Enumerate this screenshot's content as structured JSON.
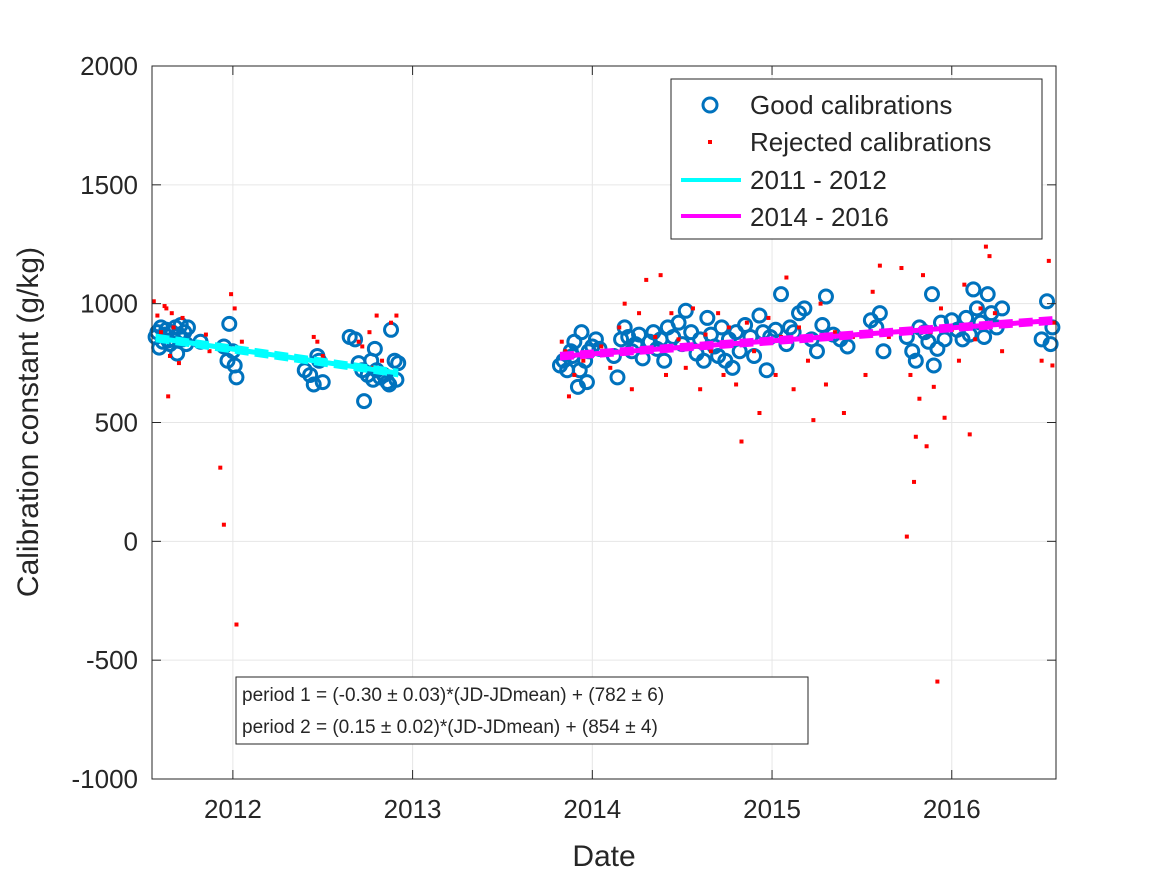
{
  "chart_data": {
    "type": "scatter",
    "xlabel": "Date",
    "ylabel": "Calibration constant (g/kg)",
    "xlim": [
      2011.55,
      2016.58
    ],
    "ylim": [
      -1000,
      2000
    ],
    "xticks": [
      2012,
      2013,
      2014,
      2015,
      2016
    ],
    "xtick_labels": [
      "2012",
      "2013",
      "2014",
      "2015",
      "2016"
    ],
    "yticks": [
      -1000,
      -500,
      0,
      500,
      1000,
      1500,
      2000
    ],
    "ytick_labels": [
      "-1000",
      "-500",
      "0",
      "500",
      "1000",
      "1500",
      "2000"
    ],
    "grid": true,
    "legend_position": "top-right",
    "series": [
      {
        "name": "Good calibrations",
        "kind": "marker-circle",
        "color": "#0072BD",
        "points": [
          [
            2011.57,
            860
          ],
          [
            2011.58,
            880
          ],
          [
            2011.59,
            815
          ],
          [
            2011.6,
            900
          ],
          [
            2011.61,
            840
          ],
          [
            2011.62,
            870
          ],
          [
            2011.63,
            890
          ],
          [
            2011.64,
            845
          ],
          [
            2011.65,
            830
          ],
          [
            2011.66,
            880
          ],
          [
            2011.67,
            850
          ],
          [
            2011.68,
            900
          ],
          [
            2011.69,
            790
          ],
          [
            2011.7,
            870
          ],
          [
            2011.71,
            910
          ],
          [
            2011.72,
            850
          ],
          [
            2011.73,
            880
          ],
          [
            2011.74,
            830
          ],
          [
            2011.75,
            900
          ],
          [
            2011.82,
            840
          ],
          [
            2011.95,
            820
          ],
          [
            2011.97,
            760
          ],
          [
            2011.98,
            915
          ],
          [
            2012.0,
            800
          ],
          [
            2012.01,
            740
          ],
          [
            2012.02,
            690
          ],
          [
            2012.4,
            720
          ],
          [
            2012.43,
            700
          ],
          [
            2012.45,
            660
          ],
          [
            2012.47,
            780
          ],
          [
            2012.48,
            760
          ],
          [
            2012.5,
            670
          ],
          [
            2012.65,
            860
          ],
          [
            2012.68,
            850
          ],
          [
            2012.7,
            750
          ],
          [
            2012.72,
            720
          ],
          [
            2012.73,
            590
          ],
          [
            2012.75,
            700
          ],
          [
            2012.77,
            760
          ],
          [
            2012.78,
            680
          ],
          [
            2012.79,
            810
          ],
          [
            2012.8,
            720
          ],
          [
            2012.82,
            690
          ],
          [
            2012.84,
            700
          ],
          [
            2012.86,
            670
          ],
          [
            2012.87,
            660
          ],
          [
            2012.88,
            890
          ],
          [
            2012.9,
            760
          ],
          [
            2012.91,
            680
          ],
          [
            2012.92,
            750
          ],
          [
            2013.82,
            740
          ],
          [
            2013.84,
            760
          ],
          [
            2013.86,
            720
          ],
          [
            2013.88,
            800
          ],
          [
            2013.89,
            780
          ],
          [
            2013.9,
            840
          ],
          [
            2013.92,
            650
          ],
          [
            2013.93,
            720
          ],
          [
            2013.94,
            880
          ],
          [
            2013.96,
            760
          ],
          [
            2013.97,
            670
          ],
          [
            2013.98,
            800
          ],
          [
            2014.0,
            820
          ],
          [
            2014.02,
            850
          ],
          [
            2014.04,
            810
          ],
          [
            2014.12,
            780
          ],
          [
            2014.14,
            690
          ],
          [
            2014.16,
            850
          ],
          [
            2014.18,
            900
          ],
          [
            2014.2,
            860
          ],
          [
            2014.22,
            800
          ],
          [
            2014.24,
            830
          ],
          [
            2014.26,
            870
          ],
          [
            2014.28,
            770
          ],
          [
            2014.32,
            840
          ],
          [
            2014.34,
            880
          ],
          [
            2014.36,
            810
          ],
          [
            2014.38,
            850
          ],
          [
            2014.4,
            760
          ],
          [
            2014.42,
            900
          ],
          [
            2014.45,
            860
          ],
          [
            2014.48,
            920
          ],
          [
            2014.5,
            830
          ],
          [
            2014.52,
            970
          ],
          [
            2014.55,
            880
          ],
          [
            2014.58,
            790
          ],
          [
            2014.6,
            850
          ],
          [
            2014.62,
            760
          ],
          [
            2014.64,
            940
          ],
          [
            2014.66,
            870
          ],
          [
            2014.68,
            820
          ],
          [
            2014.7,
            780
          ],
          [
            2014.72,
            900
          ],
          [
            2014.74,
            760
          ],
          [
            2014.76,
            850
          ],
          [
            2014.78,
            730
          ],
          [
            2014.8,
            880
          ],
          [
            2014.82,
            800
          ],
          [
            2014.85,
            910
          ],
          [
            2014.88,
            860
          ],
          [
            2014.9,
            780
          ],
          [
            2014.93,
            950
          ],
          [
            2014.95,
            880
          ],
          [
            2014.97,
            720
          ],
          [
            2014.99,
            860
          ],
          [
            2015.02,
            890
          ],
          [
            2015.05,
            1040
          ],
          [
            2015.08,
            830
          ],
          [
            2015.1,
            900
          ],
          [
            2015.12,
            880
          ],
          [
            2015.15,
            960
          ],
          [
            2015.18,
            980
          ],
          [
            2015.22,
            850
          ],
          [
            2015.25,
            800
          ],
          [
            2015.28,
            910
          ],
          [
            2015.3,
            1030
          ],
          [
            2015.34,
            870
          ],
          [
            2015.38,
            850
          ],
          [
            2015.42,
            820
          ],
          [
            2015.55,
            930
          ],
          [
            2015.58,
            900
          ],
          [
            2015.6,
            960
          ],
          [
            2015.62,
            800
          ],
          [
            2015.75,
            860
          ],
          [
            2015.78,
            800
          ],
          [
            2015.8,
            760
          ],
          [
            2015.82,
            900
          ],
          [
            2015.85,
            880
          ],
          [
            2015.87,
            840
          ],
          [
            2015.89,
            1040
          ],
          [
            2015.9,
            740
          ],
          [
            2015.92,
            810
          ],
          [
            2015.94,
            920
          ],
          [
            2015.96,
            850
          ],
          [
            2016.0,
            930
          ],
          [
            2016.03,
            890
          ],
          [
            2016.06,
            850
          ],
          [
            2016.08,
            940
          ],
          [
            2016.1,
            870
          ],
          [
            2016.12,
            1060
          ],
          [
            2016.14,
            980
          ],
          [
            2016.16,
            920
          ],
          [
            2016.18,
            860
          ],
          [
            2016.2,
            1040
          ],
          [
            2016.22,
            960
          ],
          [
            2016.25,
            900
          ],
          [
            2016.28,
            980
          ],
          [
            2016.5,
            850
          ],
          [
            2016.53,
            1010
          ],
          [
            2016.55,
            830
          ],
          [
            2016.56,
            900
          ]
        ]
      },
      {
        "name": "Rejected calibrations",
        "kind": "marker-dot",
        "color": "#FF0000",
        "points": [
          [
            2011.56,
            1010
          ],
          [
            2011.58,
            950
          ],
          [
            2011.6,
            880
          ],
          [
            2011.62,
            990
          ],
          [
            2011.63,
            980
          ],
          [
            2011.64,
            610
          ],
          [
            2011.65,
            780
          ],
          [
            2011.66,
            960
          ],
          [
            2011.67,
            900
          ],
          [
            2011.7,
            750
          ],
          [
            2011.72,
            940
          ],
          [
            2011.85,
            870
          ],
          [
            2011.87,
            800
          ],
          [
            2011.93,
            310
          ],
          [
            2011.95,
            70
          ],
          [
            2011.99,
            1040
          ],
          [
            2012.01,
            980
          ],
          [
            2012.02,
            -350
          ],
          [
            2012.05,
            840
          ],
          [
            2012.45,
            860
          ],
          [
            2012.47,
            840
          ],
          [
            2012.5,
            780
          ],
          [
            2012.7,
            840
          ],
          [
            2012.72,
            820
          ],
          [
            2012.76,
            880
          ],
          [
            2012.78,
            730
          ],
          [
            2012.8,
            950
          ],
          [
            2012.83,
            760
          ],
          [
            2012.88,
            920
          ],
          [
            2012.91,
            950
          ],
          [
            2013.83,
            840
          ],
          [
            2013.85,
            800
          ],
          [
            2013.87,
            610
          ],
          [
            2013.9,
            700
          ],
          [
            2013.95,
            760
          ],
          [
            2014.05,
            820
          ],
          [
            2014.1,
            730
          ],
          [
            2014.15,
            900
          ],
          [
            2014.18,
            1000
          ],
          [
            2014.22,
            640
          ],
          [
            2014.26,
            960
          ],
          [
            2014.3,
            1100
          ],
          [
            2014.35,
            860
          ],
          [
            2014.38,
            1120
          ],
          [
            2014.41,
            700
          ],
          [
            2014.44,
            960
          ],
          [
            2014.48,
            850
          ],
          [
            2014.52,
            730
          ],
          [
            2014.56,
            980
          ],
          [
            2014.6,
            640
          ],
          [
            2014.63,
            870
          ],
          [
            2014.66,
            800
          ],
          [
            2014.7,
            960
          ],
          [
            2014.73,
            700
          ],
          [
            2014.76,
            900
          ],
          [
            2014.8,
            660
          ],
          [
            2014.83,
            420
          ],
          [
            2014.86,
            920
          ],
          [
            2014.9,
            800
          ],
          [
            2014.93,
            540
          ],
          [
            2014.98,
            940
          ],
          [
            2015.02,
            700
          ],
          [
            2015.05,
            860
          ],
          [
            2015.08,
            1110
          ],
          [
            2015.12,
            640
          ],
          [
            2015.15,
            900
          ],
          [
            2015.2,
            760
          ],
          [
            2015.23,
            510
          ],
          [
            2015.27,
            1000
          ],
          [
            2015.3,
            660
          ],
          [
            2015.35,
            880
          ],
          [
            2015.4,
            540
          ],
          [
            2015.45,
            860
          ],
          [
            2015.52,
            700
          ],
          [
            2015.56,
            1050
          ],
          [
            2015.6,
            1160
          ],
          [
            2015.65,
            860
          ],
          [
            2015.72,
            1150
          ],
          [
            2015.75,
            20
          ],
          [
            2015.77,
            700
          ],
          [
            2015.79,
            250
          ],
          [
            2015.8,
            440
          ],
          [
            2015.82,
            600
          ],
          [
            2015.84,
            1120
          ],
          [
            2015.86,
            400
          ],
          [
            2015.88,
            880
          ],
          [
            2015.9,
            650
          ],
          [
            2015.92,
            -590
          ],
          [
            2015.94,
            980
          ],
          [
            2015.96,
            520
          ],
          [
            2016.0,
            890
          ],
          [
            2016.04,
            760
          ],
          [
            2016.07,
            1080
          ],
          [
            2016.1,
            450
          ],
          [
            2016.13,
            850
          ],
          [
            2016.16,
            980
          ],
          [
            2016.19,
            1240
          ],
          [
            2016.21,
            1200
          ],
          [
            2016.24,
            960
          ],
          [
            2016.28,
            800
          ],
          [
            2016.5,
            760
          ],
          [
            2016.54,
            1180
          ],
          [
            2016.56,
            740
          ],
          [
            2016.57,
            920
          ]
        ]
      },
      {
        "name": "2011 - 2012",
        "kind": "fit-line",
        "color": "#00FFFF",
        "x_range": [
          2011.57,
          2012.92
        ],
        "slope_per_day": -0.3,
        "slope_unc": 0.03,
        "intercept": 782,
        "intercept_unc": 6
      },
      {
        "name": "2014 - 2016",
        "kind": "fit-line",
        "color": "#FF00FF",
        "x_range": [
          2013.82,
          2016.56
        ],
        "slope_per_day": 0.15,
        "slope_unc": 0.02,
        "intercept": 854,
        "intercept_unc": 4
      }
    ],
    "annotation": {
      "line1": "period 1 = (-0.30 ± 0.03)*(JD-JDmean) + (782 ± 6)",
      "line2": "period 2 = (0.15 ± 0.02)*(JD-JDmean) + (854 ± 4)"
    }
  }
}
